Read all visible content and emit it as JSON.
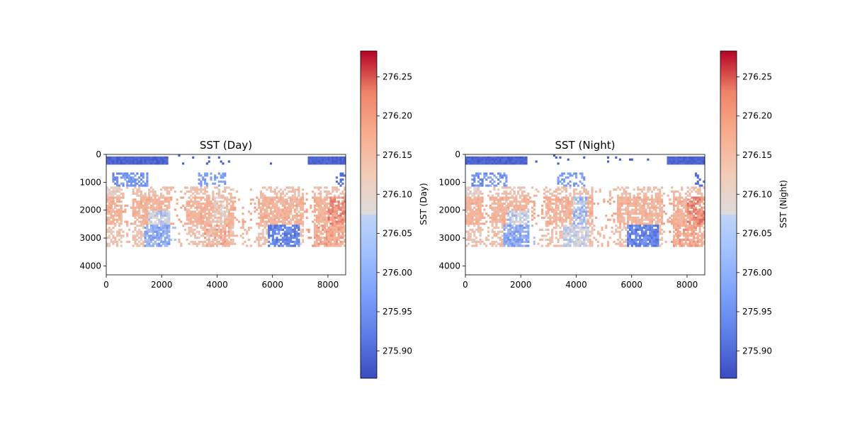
{
  "colors": {
    "cmap_low": "#3b4cc0",
    "cmap_mid": "#dddddd",
    "cmap_high": "#b40426",
    "axis": "#000000",
    "background": "#ffffff"
  },
  "chart_data": [
    {
      "type": "heatmap",
      "title": "SST (Day)",
      "xlabel": "",
      "ylabel": "",
      "xlim": [
        0,
        8640
      ],
      "ylim": [
        4320,
        0
      ],
      "xticks": [
        "0",
        "2000",
        "4000",
        "6000",
        "8000"
      ],
      "yticks": [
        "0",
        "1000",
        "2000",
        "3000",
        "4000"
      ],
      "colorbar": {
        "label": "SST (Day)",
        "range": [
          275.865,
          276.283
        ],
        "cmap": "coolwarm",
        "ticks": [
          "275.90",
          "275.95",
          "276.00",
          "276.05",
          "276.10",
          "276.15",
          "276.20",
          "276.25"
        ]
      },
      "grid": false
    },
    {
      "type": "heatmap",
      "title": "SST (Night)",
      "xlabel": "",
      "ylabel": "",
      "xlim": [
        0,
        8640
      ],
      "ylim": [
        4320,
        0
      ],
      "xticks": [
        "0",
        "2000",
        "4000",
        "6000",
        "8000"
      ],
      "yticks": [
        "0",
        "1000",
        "2000",
        "3000",
        "4000"
      ],
      "colorbar": {
        "label": "SST (Night)",
        "range": [
          275.865,
          276.283
        ],
        "cmap": "coolwarm",
        "ticks": [
          "275.90",
          "275.95",
          "276.00",
          "276.05",
          "276.10",
          "276.15",
          "276.20",
          "276.25"
        ]
      },
      "grid": false
    }
  ]
}
